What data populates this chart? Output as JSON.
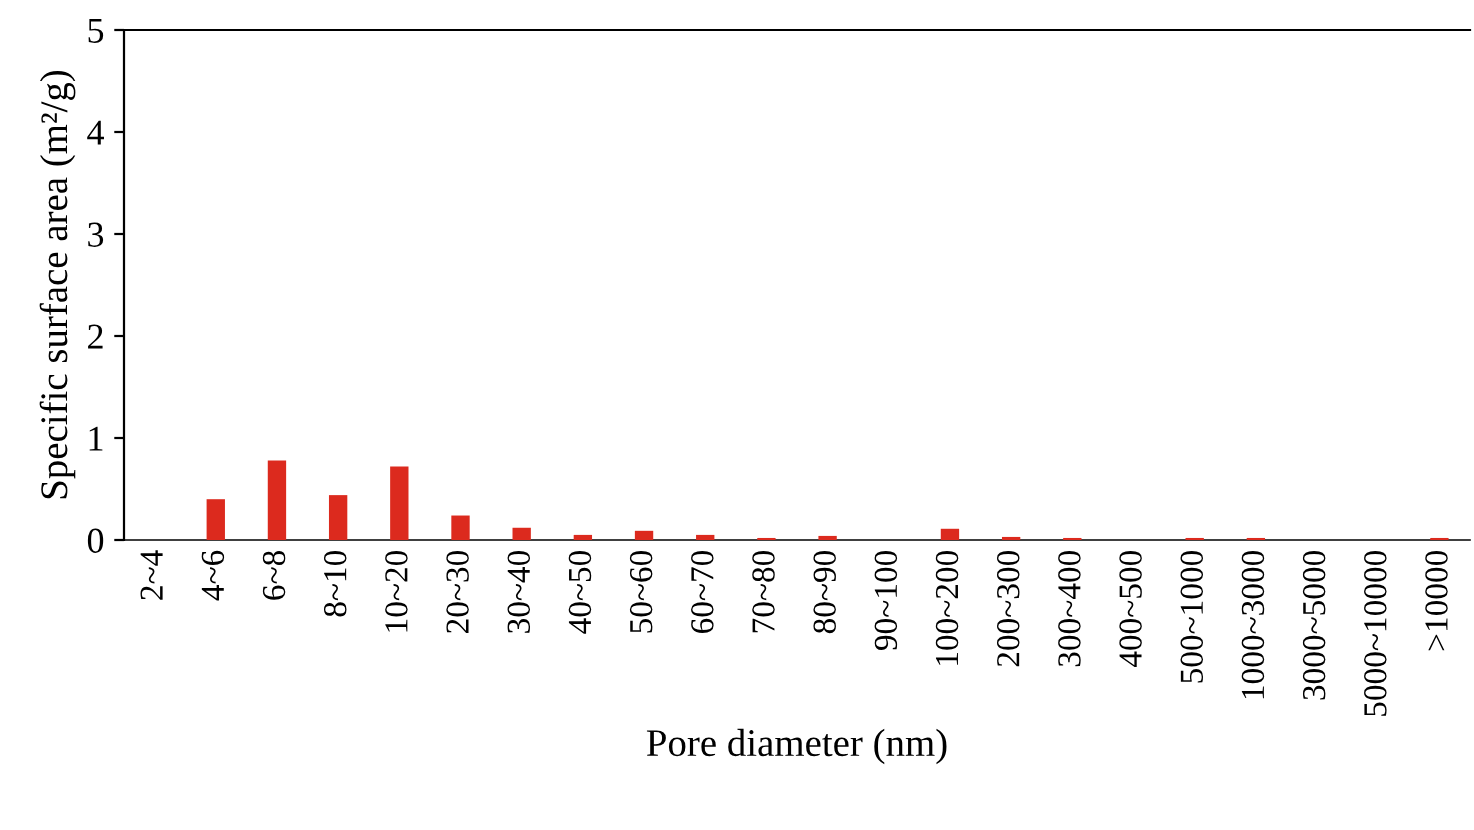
{
  "chart_data": {
    "type": "bar",
    "xlabel": "Pore diameter (nm)",
    "ylabel": "Specific surface area (m²/g)",
    "categories": [
      "2~4",
      "4~6",
      "6~8",
      "8~10",
      "10~20",
      "20~30",
      "30~40",
      "40~50",
      "50~60",
      "60~70",
      "70~80",
      "80~90",
      "90~100",
      "100~200",
      "200~300",
      "300~400",
      "400~500",
      "500~1000",
      "1000~3000",
      "3000~5000",
      "5000~10000",
      ">10000"
    ],
    "values": [
      0,
      0.4,
      0.78,
      0.44,
      0.72,
      0.24,
      0.12,
      0.05,
      0.09,
      0.05,
      0.02,
      0.04,
      0,
      0.11,
      0.03,
      0.02,
      0,
      0.02,
      0.02,
      0,
      0,
      0.02
    ],
    "color": "#dc2a1e",
    "ylim": [
      0,
      5
    ],
    "yticks": [
      0,
      1,
      2,
      3,
      4,
      5
    ],
    "grid": false
  }
}
